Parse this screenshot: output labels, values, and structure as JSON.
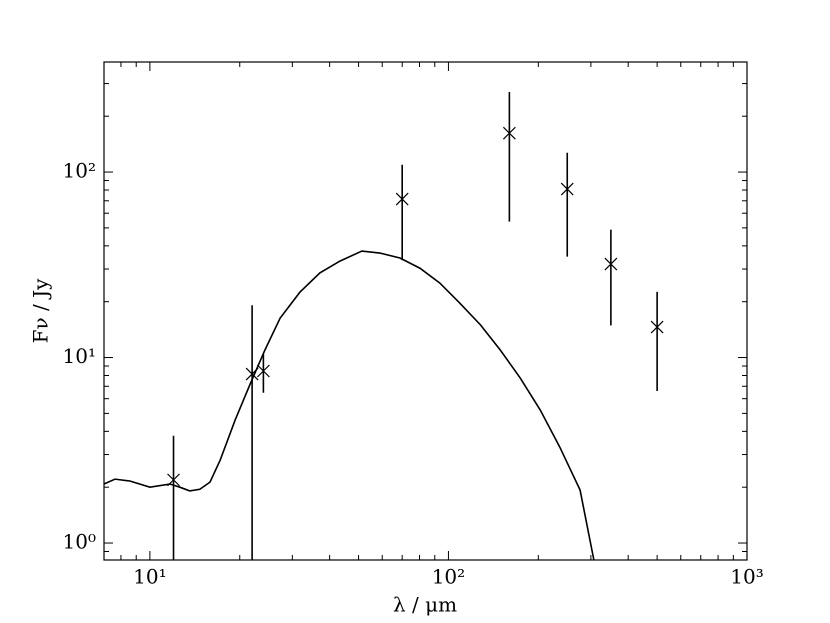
{
  "chart_data": {
    "type": "line",
    "xlabel": "λ / μm",
    "ylabel": "Fν / Jy",
    "xlog": true,
    "ylog": true,
    "xlim": [
      7.02,
      1000
    ],
    "ylim": [
      0.81,
      392
    ],
    "xticks": [
      {
        "value": 10,
        "label": "10¹"
      },
      {
        "value": 100,
        "label": "10²"
      },
      {
        "value": 1000,
        "label": "10³"
      }
    ],
    "yticks": [
      {
        "value": 1,
        "label": "10⁰"
      },
      {
        "value": 10,
        "label": "10¹"
      },
      {
        "value": 100,
        "label": "10²"
      }
    ],
    "series": [
      {
        "type": "line",
        "color": "#000000",
        "x": [
          7.02,
          7.64,
          8.57,
          10,
          11.67,
          12.6,
          13.6,
          14.7,
          15.9,
          17.2,
          19.3,
          21.6,
          24.3,
          27.3,
          31.8,
          37.1,
          43.3,
          51.3,
          58.9,
          68.8,
          80.3,
          93.6,
          109,
          128,
          149,
          174,
          203,
          236,
          276,
          307
        ],
        "values": [
          2.08,
          2.21,
          2.16,
          2.0,
          2.08,
          2.0,
          1.91,
          1.95,
          2.13,
          2.8,
          4.6,
          7.11,
          11.0,
          16.3,
          22.5,
          28.6,
          33.1,
          37.5,
          36.6,
          34.4,
          30.3,
          25.2,
          19.7,
          15.0,
          11.0,
          7.75,
          5.21,
          3.29,
          1.93,
          0.81
        ]
      },
      {
        "type": "scatter",
        "color": "#000000",
        "x": [
          12,
          22,
          24,
          70,
          160,
          250,
          350,
          500
        ],
        "values": [
          2.19,
          8.15,
          8.46,
          71.5,
          162,
          81,
          31.9,
          14.6
        ],
        "errors": [
          1.6,
          11,
          2.0,
          38,
          108,
          46,
          17,
          8
        ]
      }
    ]
  }
}
